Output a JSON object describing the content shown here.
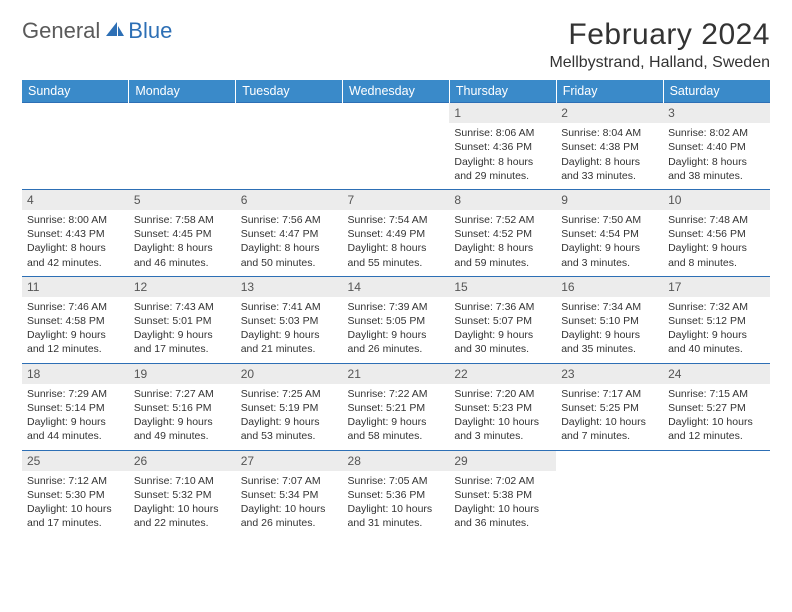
{
  "logo": {
    "general": "General",
    "blue": "Blue"
  },
  "title": "February 2024",
  "location": "Mellbystrand, Halland, Sweden",
  "colors": {
    "header_bg": "#3a8ac9",
    "header_text": "#ffffff",
    "daynum_bg": "#ececec",
    "row_border": "#2d6fb5",
    "logo_gray": "#5a5a5a",
    "logo_blue": "#2d6fb5"
  },
  "weekdays": [
    "Sunday",
    "Monday",
    "Tuesday",
    "Wednesday",
    "Thursday",
    "Friday",
    "Saturday"
  ],
  "month": {
    "first_weekday_index": 4,
    "num_days": 29
  },
  "days": {
    "1": {
      "sunrise": "8:06 AM",
      "sunset": "4:36 PM",
      "dl_h": 8,
      "dl_m": 29
    },
    "2": {
      "sunrise": "8:04 AM",
      "sunset": "4:38 PM",
      "dl_h": 8,
      "dl_m": 33
    },
    "3": {
      "sunrise": "8:02 AM",
      "sunset": "4:40 PM",
      "dl_h": 8,
      "dl_m": 38
    },
    "4": {
      "sunrise": "8:00 AM",
      "sunset": "4:43 PM",
      "dl_h": 8,
      "dl_m": 42
    },
    "5": {
      "sunrise": "7:58 AM",
      "sunset": "4:45 PM",
      "dl_h": 8,
      "dl_m": 46
    },
    "6": {
      "sunrise": "7:56 AM",
      "sunset": "4:47 PM",
      "dl_h": 8,
      "dl_m": 50
    },
    "7": {
      "sunrise": "7:54 AM",
      "sunset": "4:49 PM",
      "dl_h": 8,
      "dl_m": 55
    },
    "8": {
      "sunrise": "7:52 AM",
      "sunset": "4:52 PM",
      "dl_h": 8,
      "dl_m": 59
    },
    "9": {
      "sunrise": "7:50 AM",
      "sunset": "4:54 PM",
      "dl_h": 9,
      "dl_m": 3
    },
    "10": {
      "sunrise": "7:48 AM",
      "sunset": "4:56 PM",
      "dl_h": 9,
      "dl_m": 8
    },
    "11": {
      "sunrise": "7:46 AM",
      "sunset": "4:58 PM",
      "dl_h": 9,
      "dl_m": 12
    },
    "12": {
      "sunrise": "7:43 AM",
      "sunset": "5:01 PM",
      "dl_h": 9,
      "dl_m": 17
    },
    "13": {
      "sunrise": "7:41 AM",
      "sunset": "5:03 PM",
      "dl_h": 9,
      "dl_m": 21
    },
    "14": {
      "sunrise": "7:39 AM",
      "sunset": "5:05 PM",
      "dl_h": 9,
      "dl_m": 26
    },
    "15": {
      "sunrise": "7:36 AM",
      "sunset": "5:07 PM",
      "dl_h": 9,
      "dl_m": 30
    },
    "16": {
      "sunrise": "7:34 AM",
      "sunset": "5:10 PM",
      "dl_h": 9,
      "dl_m": 35
    },
    "17": {
      "sunrise": "7:32 AM",
      "sunset": "5:12 PM",
      "dl_h": 9,
      "dl_m": 40
    },
    "18": {
      "sunrise": "7:29 AM",
      "sunset": "5:14 PM",
      "dl_h": 9,
      "dl_m": 44
    },
    "19": {
      "sunrise": "7:27 AM",
      "sunset": "5:16 PM",
      "dl_h": 9,
      "dl_m": 49
    },
    "20": {
      "sunrise": "7:25 AM",
      "sunset": "5:19 PM",
      "dl_h": 9,
      "dl_m": 53
    },
    "21": {
      "sunrise": "7:22 AM",
      "sunset": "5:21 PM",
      "dl_h": 9,
      "dl_m": 58
    },
    "22": {
      "sunrise": "7:20 AM",
      "sunset": "5:23 PM",
      "dl_h": 10,
      "dl_m": 3
    },
    "23": {
      "sunrise": "7:17 AM",
      "sunset": "5:25 PM",
      "dl_h": 10,
      "dl_m": 7
    },
    "24": {
      "sunrise": "7:15 AM",
      "sunset": "5:27 PM",
      "dl_h": 10,
      "dl_m": 12
    },
    "25": {
      "sunrise": "7:12 AM",
      "sunset": "5:30 PM",
      "dl_h": 10,
      "dl_m": 17
    },
    "26": {
      "sunrise": "7:10 AM",
      "sunset": "5:32 PM",
      "dl_h": 10,
      "dl_m": 22
    },
    "27": {
      "sunrise": "7:07 AM",
      "sunset": "5:34 PM",
      "dl_h": 10,
      "dl_m": 26
    },
    "28": {
      "sunrise": "7:05 AM",
      "sunset": "5:36 PM",
      "dl_h": 10,
      "dl_m": 31
    },
    "29": {
      "sunrise": "7:02 AM",
      "sunset": "5:38 PM",
      "dl_h": 10,
      "dl_m": 36
    }
  },
  "labels": {
    "sunrise": "Sunrise:",
    "sunset": "Sunset:",
    "daylight": "Daylight:",
    "hours": "hours",
    "and": "and",
    "minutes": "minutes."
  }
}
